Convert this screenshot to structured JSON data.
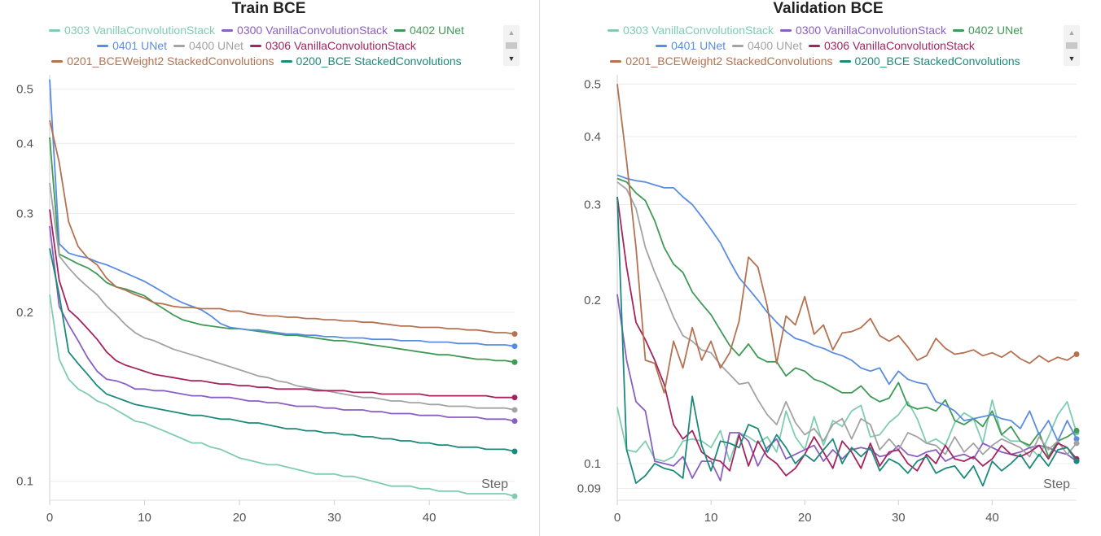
{
  "chart_data": [
    {
      "type": "line",
      "title": "Train BCE",
      "xlabel": "Step",
      "ylabel": "",
      "xlim": [
        0,
        49
      ],
      "ylim": [
        0.095,
        0.53
      ],
      "yscale": "log",
      "grid": true,
      "legend_position": "top",
      "xticks": [
        0,
        10,
        20,
        30,
        40
      ],
      "yticks": [
        0.1,
        0.2,
        0.3,
        0.4,
        0.5
      ],
      "ytick_labels": [
        "0.1",
        "0.2",
        "0.3",
        "0.4",
        "0.5"
      ],
      "legend_rows": [
        [
          0,
          1,
          2
        ],
        [
          3,
          4,
          5
        ],
        [
          6,
          7
        ]
      ],
      "series": [
        {
          "name": "0303 VanillaConvolutionStack",
          "color": "#7fccb0",
          "values": [
            0.215,
            0.165,
            0.152,
            0.146,
            0.143,
            0.139,
            0.137,
            0.134,
            0.131,
            0.128,
            0.127,
            0.125,
            0.123,
            0.121,
            0.119,
            0.117,
            0.117,
            0.115,
            0.114,
            0.112,
            0.11,
            0.109,
            0.108,
            0.107,
            0.107,
            0.106,
            0.105,
            0.104,
            0.103,
            0.103,
            0.103,
            0.102,
            0.102,
            0.101,
            0.1,
            0.099,
            0.098,
            0.098,
            0.098,
            0.097,
            0.097,
            0.096,
            0.096,
            0.096,
            0.095,
            0.095,
            0.095,
            0.095,
            0.095,
            0.094
          ]
        },
        {
          "name": "0300 VanillaConvolutionStack",
          "color": "#8a5fc2",
          "values": [
            0.285,
            0.205,
            0.19,
            0.178,
            0.166,
            0.157,
            0.152,
            0.151,
            0.149,
            0.146,
            0.146,
            0.145,
            0.145,
            0.144,
            0.143,
            0.142,
            0.142,
            0.141,
            0.141,
            0.141,
            0.14,
            0.139,
            0.139,
            0.138,
            0.138,
            0.137,
            0.136,
            0.136,
            0.136,
            0.135,
            0.135,
            0.134,
            0.134,
            0.134,
            0.133,
            0.133,
            0.132,
            0.132,
            0.132,
            0.131,
            0.131,
            0.131,
            0.13,
            0.13,
            0.13,
            0.13,
            0.129,
            0.129,
            0.129,
            0.128
          ]
        },
        {
          "name": "0402 UNet",
          "color": "#3e9a55",
          "values": [
            0.41,
            0.254,
            0.249,
            0.244,
            0.24,
            0.234,
            0.226,
            0.222,
            0.22,
            0.217,
            0.214,
            0.208,
            0.203,
            0.198,
            0.194,
            0.192,
            0.19,
            0.189,
            0.188,
            0.187,
            0.187,
            0.186,
            0.185,
            0.184,
            0.183,
            0.182,
            0.182,
            0.181,
            0.18,
            0.179,
            0.178,
            0.178,
            0.177,
            0.176,
            0.175,
            0.174,
            0.173,
            0.172,
            0.171,
            0.17,
            0.169,
            0.168,
            0.168,
            0.167,
            0.166,
            0.165,
            0.165,
            0.164,
            0.164,
            0.163
          ]
        },
        {
          "name": "0401 UNet",
          "color": "#5a8de0",
          "values": [
            0.52,
            0.265,
            0.255,
            0.252,
            0.25,
            0.246,
            0.243,
            0.239,
            0.235,
            0.231,
            0.227,
            0.222,
            0.217,
            0.212,
            0.208,
            0.205,
            0.202,
            0.197,
            0.191,
            0.188,
            0.187,
            0.186,
            0.186,
            0.185,
            0.184,
            0.183,
            0.183,
            0.182,
            0.182,
            0.181,
            0.181,
            0.18,
            0.18,
            0.18,
            0.179,
            0.179,
            0.179,
            0.178,
            0.178,
            0.178,
            0.177,
            0.177,
            0.177,
            0.176,
            0.176,
            0.176,
            0.175,
            0.175,
            0.175,
            0.174
          ]
        },
        {
          "name": "0400 UNet",
          "color": "#a3a3a3",
          "values": [
            0.34,
            0.252,
            0.24,
            0.23,
            0.222,
            0.215,
            0.205,
            0.198,
            0.19,
            0.184,
            0.18,
            0.178,
            0.175,
            0.172,
            0.17,
            0.168,
            0.166,
            0.164,
            0.162,
            0.16,
            0.158,
            0.156,
            0.154,
            0.153,
            0.151,
            0.15,
            0.148,
            0.147,
            0.146,
            0.145,
            0.144,
            0.143,
            0.142,
            0.141,
            0.141,
            0.14,
            0.139,
            0.139,
            0.138,
            0.138,
            0.137,
            0.137,
            0.136,
            0.136,
            0.136,
            0.135,
            0.135,
            0.135,
            0.135,
            0.134
          ]
        },
        {
          "name": "0306 VanillaConvolutionStack",
          "color": "#a3245f",
          "values": [
            0.305,
            0.228,
            0.202,
            0.195,
            0.187,
            0.179,
            0.17,
            0.164,
            0.161,
            0.159,
            0.157,
            0.155,
            0.154,
            0.153,
            0.152,
            0.151,
            0.151,
            0.15,
            0.149,
            0.149,
            0.148,
            0.148,
            0.147,
            0.147,
            0.146,
            0.146,
            0.146,
            0.146,
            0.145,
            0.145,
            0.145,
            0.145,
            0.144,
            0.144,
            0.144,
            0.143,
            0.143,
            0.143,
            0.143,
            0.143,
            0.142,
            0.142,
            0.142,
            0.142,
            0.142,
            0.142,
            0.142,
            0.141,
            0.141,
            0.141
          ]
        },
        {
          "name": "0201_BCEWeight2 StackedConvolutions",
          "color": "#b47250",
          "values": [
            0.44,
            0.37,
            0.29,
            0.262,
            0.25,
            0.243,
            0.23,
            0.222,
            0.219,
            0.215,
            0.212,
            0.208,
            0.207,
            0.205,
            0.204,
            0.204,
            0.203,
            0.203,
            0.203,
            0.201,
            0.201,
            0.199,
            0.198,
            0.197,
            0.197,
            0.196,
            0.196,
            0.195,
            0.195,
            0.194,
            0.194,
            0.193,
            0.193,
            0.192,
            0.192,
            0.191,
            0.19,
            0.189,
            0.189,
            0.188,
            0.188,
            0.188,
            0.187,
            0.187,
            0.186,
            0.186,
            0.185,
            0.184,
            0.184,
            0.183
          ]
        },
        {
          "name": "0200_BCE StackedConvolutions",
          "color": "#1b8a7a",
          "values": [
            0.26,
            0.215,
            0.17,
            0.162,
            0.155,
            0.148,
            0.143,
            0.141,
            0.139,
            0.137,
            0.136,
            0.135,
            0.134,
            0.133,
            0.132,
            0.131,
            0.131,
            0.13,
            0.129,
            0.129,
            0.128,
            0.127,
            0.127,
            0.126,
            0.125,
            0.124,
            0.124,
            0.123,
            0.123,
            0.122,
            0.122,
            0.121,
            0.121,
            0.12,
            0.12,
            0.119,
            0.119,
            0.118,
            0.118,
            0.117,
            0.117,
            0.116,
            0.116,
            0.115,
            0.115,
            0.115,
            0.114,
            0.114,
            0.114,
            0.113
          ]
        }
      ]
    },
    {
      "type": "line",
      "title": "Validation BCE",
      "xlabel": "Step",
      "ylabel": "",
      "xlim": [
        0,
        49
      ],
      "ylim": [
        0.088,
        0.52
      ],
      "yscale": "log",
      "grid": true,
      "legend_position": "top",
      "xticks": [
        0,
        10,
        20,
        30,
        40
      ],
      "yticks": [
        0.09,
        0.1,
        0.2,
        0.3,
        0.4,
        0.5
      ],
      "ytick_labels": [
        "0.09",
        "0.1",
        "0.2",
        "0.3",
        "0.4",
        "0.5"
      ],
      "legend_rows": [
        [
          0,
          1,
          2
        ],
        [
          3,
          4,
          5
        ],
        [
          6,
          7
        ]
      ],
      "series": [
        {
          "name": "0303 VanillaConvolutionStack",
          "color": "#7fccb0",
          "values": [
            0.127,
            0.106,
            0.105,
            0.11,
            0.102,
            0.101,
            0.103,
            0.11,
            0.111,
            0.11,
            0.107,
            0.115,
            0.101,
            0.114,
            0.112,
            0.109,
            0.112,
            0.105,
            0.125,
            0.112,
            0.106,
            0.122,
            0.108,
            0.12,
            0.117,
            0.125,
            0.128,
            0.112,
            0.113,
            0.119,
            0.123,
            0.13,
            0.121,
            0.109,
            0.111,
            0.108,
            0.119,
            0.124,
            0.121,
            0.109,
            0.131,
            0.113,
            0.11,
            0.11,
            0.107,
            0.103,
            0.112,
            0.123,
            0.13,
            0.114
          ]
        },
        {
          "name": "0300 VanillaConvolutionStack",
          "color": "#8a5fc2",
          "values": [
            0.205,
            0.155,
            0.13,
            0.125,
            0.101,
            0.1,
            0.099,
            0.103,
            0.094,
            0.101,
            0.101,
            0.093,
            0.114,
            0.114,
            0.11,
            0.099,
            0.107,
            0.111,
            0.102,
            0.104,
            0.106,
            0.108,
            0.101,
            0.106,
            0.102,
            0.106,
            0.107,
            0.106,
            0.103,
            0.104,
            0.108,
            0.104,
            0.103,
            0.105,
            0.106,
            0.101,
            0.103,
            0.104,
            0.102,
            0.109,
            0.107,
            0.105,
            0.104,
            0.105,
            0.107,
            0.108,
            0.107,
            0.105,
            0.104,
            0.101
          ]
        },
        {
          "name": "0402 UNet",
          "color": "#3e9a55",
          "values": [
            0.335,
            0.33,
            0.315,
            0.305,
            0.28,
            0.25,
            0.233,
            0.225,
            0.207,
            0.197,
            0.188,
            0.176,
            0.165,
            0.158,
            0.166,
            0.157,
            0.154,
            0.154,
            0.145,
            0.15,
            0.148,
            0.143,
            0.141,
            0.138,
            0.135,
            0.135,
            0.139,
            0.133,
            0.13,
            0.132,
            0.141,
            0.128,
            0.126,
            0.127,
            0.125,
            0.131,
            0.12,
            0.118,
            0.121,
            0.117,
            0.125,
            0.113,
            0.117,
            0.11,
            0.108,
            0.114,
            0.103,
            0.11,
            0.112,
            0.115
          ]
        },
        {
          "name": "0401 UNet",
          "color": "#5a8de0",
          "values": [
            0.34,
            0.335,
            0.332,
            0.33,
            0.326,
            0.322,
            0.322,
            0.31,
            0.3,
            0.285,
            0.27,
            0.255,
            0.236,
            0.22,
            0.21,
            0.2,
            0.19,
            0.182,
            0.175,
            0.17,
            0.168,
            0.165,
            0.163,
            0.16,
            0.158,
            0.155,
            0.15,
            0.148,
            0.15,
            0.14,
            0.148,
            0.143,
            0.141,
            0.14,
            0.13,
            0.128,
            0.125,
            0.12,
            0.121,
            0.122,
            0.123,
            0.121,
            0.12,
            0.116,
            0.125,
            0.113,
            0.12,
            0.11,
            0.12,
            0.111
          ]
        },
        {
          "name": "0400 UNet",
          "color": "#a3a3a3",
          "values": [
            0.33,
            0.32,
            0.295,
            0.25,
            0.225,
            0.205,
            0.186,
            0.172,
            0.168,
            0.162,
            0.16,
            0.152,
            0.146,
            0.14,
            0.141,
            0.131,
            0.123,
            0.118,
            0.13,
            0.119,
            0.113,
            0.116,
            0.11,
            0.118,
            0.121,
            0.111,
            0.121,
            0.118,
            0.106,
            0.111,
            0.106,
            0.114,
            0.112,
            0.109,
            0.108,
            0.104,
            0.112,
            0.105,
            0.109,
            0.104,
            0.108,
            0.111,
            0.109,
            0.107,
            0.103,
            0.112,
            0.106,
            0.11,
            0.104,
            0.109
          ]
        },
        {
          "name": "0306 VanillaConvolutionStack",
          "color": "#a3245f",
          "values": [
            0.31,
            0.23,
            0.182,
            0.169,
            0.155,
            0.14,
            0.118,
            0.111,
            0.115,
            0.105,
            0.102,
            0.101,
            0.097,
            0.113,
            0.099,
            0.11,
            0.103,
            0.1,
            0.095,
            0.098,
            0.104,
            0.112,
            0.105,
            0.098,
            0.11,
            0.105,
            0.098,
            0.109,
            0.099,
            0.105,
            0.106,
            0.1,
            0.097,
            0.104,
            0.1,
            0.108,
            0.102,
            0.101,
            0.103,
            0.099,
            0.102,
            0.108,
            0.104,
            0.103,
            0.105,
            0.108,
            0.102,
            0.109,
            0.107,
            0.102
          ]
        },
        {
          "name": "0201_BCEWeight2 StackedConvolutions",
          "color": "#b47250",
          "values": [
            0.5,
            0.36,
            0.25,
            0.155,
            0.153,
            0.135,
            0.168,
            0.15,
            0.178,
            0.155,
            0.168,
            0.15,
            0.16,
            0.183,
            0.24,
            0.23,
            0.195,
            0.153,
            0.187,
            0.18,
            0.203,
            0.173,
            0.18,
            0.162,
            0.174,
            0.175,
            0.178,
            0.185,
            0.172,
            0.168,
            0.172,
            0.164,
            0.155,
            0.158,
            0.17,
            0.163,
            0.159,
            0.16,
            0.162,
            0.158,
            0.16,
            0.157,
            0.161,
            0.156,
            0.153,
            0.158,
            0.154,
            0.157,
            0.155,
            0.159
          ]
        },
        {
          "name": "0200_BCE StackedConvolutions",
          "color": "#1b8a7a",
          "values": [
            0.31,
            0.106,
            0.092,
            0.095,
            0.1,
            0.098,
            0.097,
            0.094,
            0.133,
            0.108,
            0.097,
            0.11,
            0.109,
            0.107,
            0.118,
            0.116,
            0.105,
            0.113,
            0.107,
            0.1,
            0.104,
            0.101,
            0.106,
            0.111,
            0.1,
            0.107,
            0.103,
            0.107,
            0.097,
            0.102,
            0.1,
            0.096,
            0.101,
            0.103,
            0.096,
            0.098,
            0.099,
            0.094,
            0.099,
            0.091,
            0.101,
            0.097,
            0.1,
            0.104,
            0.098,
            0.104,
            0.099,
            0.106,
            0.107,
            0.101
          ]
        }
      ]
    }
  ]
}
